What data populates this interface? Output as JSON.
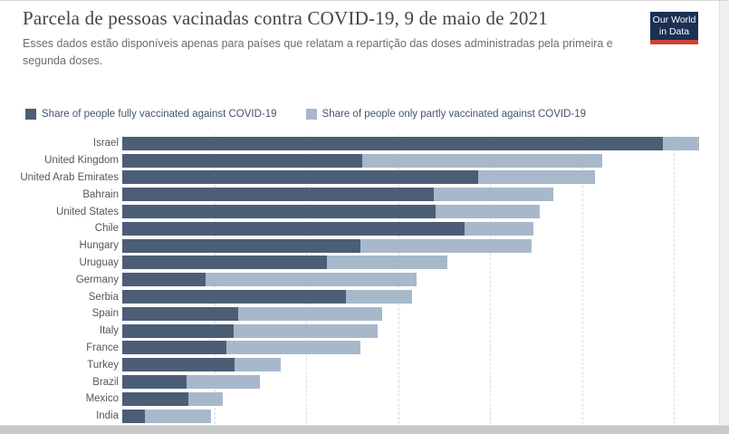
{
  "header": {
    "title": "Parcela de pessoas vacinadas contra COVID-19, 9 de maio de 2021",
    "subtitle": "Esses dados estão disponíveis apenas para países que relatam a repartição das doses administradas pela primeira e segunda doses.",
    "logo": {
      "line1": "Our World",
      "line2": "in Data",
      "bg_color": "#1b3054",
      "accent_color": "#cf4338"
    }
  },
  "legend": [
    {
      "label": "Share of people fully vaccinated against COVID-19",
      "color": "#4c5e75"
    },
    {
      "label": "Share of people only partly vaccinated against COVID-19",
      "color": "#a7b8cb"
    }
  ],
  "chart_data": {
    "type": "bar",
    "orientation": "horizontal",
    "stacked": true,
    "unit": "%",
    "categories": [
      "Israel",
      "United Kingdom",
      "United Arab Emirates",
      "Bahrain",
      "United States",
      "Chile",
      "Hungary",
      "Uruguay",
      "Germany",
      "Serbia",
      "Spain",
      "Italy",
      "France",
      "Turkey",
      "Brazil",
      "Mexico",
      "India"
    ],
    "series": [
      {
        "name": "Share of people fully vaccinated against COVID-19",
        "color": "#4c5e75",
        "values": [
          58.8,
          26.1,
          38.7,
          33.9,
          34.1,
          37.2,
          25.9,
          22.3,
          9.1,
          24.3,
          12.6,
          12.1,
          11.3,
          12.2,
          7.0,
          7.2,
          2.5
        ]
      },
      {
        "name": "Share of people only partly vaccinated against COVID-19",
        "color": "#a7b8cb",
        "values": [
          4.0,
          26.1,
          12.7,
          13.0,
          11.3,
          7.5,
          18.6,
          13.1,
          22.9,
          7.2,
          15.7,
          15.7,
          14.6,
          5.0,
          8.0,
          3.7,
          7.2
        ]
      }
    ],
    "xlim": [
      0,
      63
    ],
    "gridlines_percent": [
      10,
      20,
      30,
      40,
      50,
      60
    ],
    "grid_style": "vertical dashed",
    "axis_tick_labels_visible": false,
    "legend_position": "top"
  }
}
